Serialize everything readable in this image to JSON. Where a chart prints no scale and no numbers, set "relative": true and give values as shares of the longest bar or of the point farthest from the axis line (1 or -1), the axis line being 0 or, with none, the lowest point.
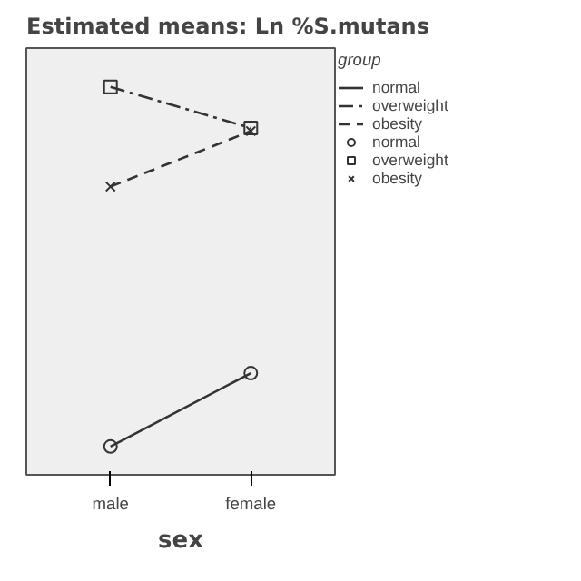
{
  "chart_data": {
    "type": "line",
    "title": "Estimated means: Ln %S.mutans",
    "xlabel": "sex",
    "legend_title": "group",
    "categories": [
      "male",
      "female"
    ],
    "relative": true,
    "legend": "right",
    "grid": false,
    "series": [
      {
        "name": "normal",
        "color": "#333333",
        "values": [
          0.073,
          0.262
        ],
        "line_style": "solid",
        "marker": "circle"
      },
      {
        "name": "overweight",
        "color": "#333333",
        "values": [
          1,
          0.894
        ],
        "line_style": "dashdot",
        "marker": "square"
      },
      {
        "name": "obesity",
        "color": "#333333",
        "values": [
          0.743,
          0.886
        ],
        "line_style": "dashed",
        "marker": "cross"
      }
    ]
  }
}
